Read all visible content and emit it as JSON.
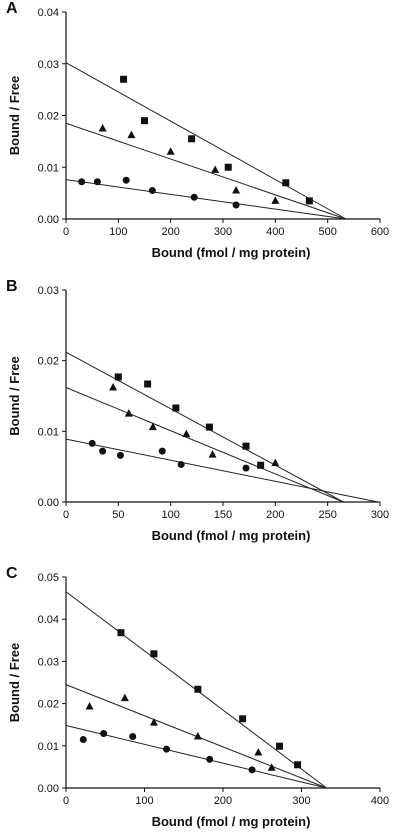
{
  "chart_data": [
    {
      "type": "scatter",
      "panel_label": "A",
      "xlabel": "Bound (fmol / mg protein)",
      "ylabel": "Bound / Free",
      "xlim": [
        0,
        600
      ],
      "ylim": [
        0,
        0.04
      ],
      "xticks": [
        "0",
        "100",
        "200",
        "300",
        "400",
        "500",
        "600"
      ],
      "yticks": [
        "0.00",
        "0.01",
        "0.02",
        "0.03",
        "0.04"
      ],
      "series": [
        {
          "marker": "square",
          "x": [
            110,
            150,
            240,
            310,
            420,
            465
          ],
          "y": [
            0.027,
            0.019,
            0.0155,
            0.01,
            0.007,
            0.0035
          ],
          "fit": [
            [
              0,
              0.0302
            ],
            [
              535,
              0
            ]
          ]
        },
        {
          "marker": "triangle",
          "x": [
            70,
            125,
            200,
            285,
            325,
            400
          ],
          "y": [
            0.0175,
            0.0162,
            0.013,
            0.0095,
            0.0055,
            0.0035
          ],
          "fit": [
            [
              0,
              0.0185
            ],
            [
              535,
              0
            ]
          ]
        },
        {
          "marker": "circle",
          "x": [
            30,
            60,
            115,
            165,
            245,
            325
          ],
          "y": [
            0.0072,
            0.0072,
            0.0075,
            0.0055,
            0.0042,
            0.0027
          ],
          "fit": [
            [
              0,
              0.0076
            ],
            [
              535,
              0
            ]
          ]
        }
      ]
    },
    {
      "type": "scatter",
      "panel_label": "B",
      "xlabel": "Bound (fmol / mg protein)",
      "ylabel": "Bound / Free",
      "xlim": [
        0,
        300
      ],
      "ylim": [
        0,
        0.03
      ],
      "xticks": [
        "0",
        "50",
        "100",
        "150",
        "200",
        "250",
        "300"
      ],
      "yticks": [
        "0.00",
        "0.01",
        "0.02",
        "0.03"
      ],
      "series": [
        {
          "marker": "square",
          "x": [
            50,
            78,
            105,
            137,
            172,
            186
          ],
          "y": [
            0.0177,
            0.0167,
            0.0133,
            0.0106,
            0.0079,
            0.0052
          ],
          "fit": [
            [
              0,
              0.0212
            ],
            [
              265,
              0
            ]
          ]
        },
        {
          "marker": "triangle",
          "x": [
            45,
            60,
            83,
            115,
            140,
            200
          ],
          "y": [
            0.0162,
            0.0125,
            0.0106,
            0.0096,
            0.0067,
            0.0055
          ],
          "fit": [
            [
              0,
              0.0162
            ],
            [
              265,
              0
            ]
          ]
        },
        {
          "marker": "circle",
          "x": [
            25,
            35,
            52,
            92,
            110,
            172
          ],
          "y": [
            0.0083,
            0.0072,
            0.0066,
            0.0072,
            0.0053,
            0.0048
          ],
          "fit": [
            [
              0,
              0.0089
            ],
            [
              298,
              0
            ]
          ]
        }
      ]
    },
    {
      "type": "scatter",
      "panel_label": "C",
      "xlabel": "Bound (fmol / mg protein)",
      "ylabel": "Bound / Free",
      "xlim": [
        0,
        400
      ],
      "ylim": [
        0,
        0.05
      ],
      "xticks": [
        "0",
        "100",
        "200",
        "300",
        "400"
      ],
      "yticks": [
        "0.00",
        "0.01",
        "0.02",
        "0.03",
        "0.04",
        "0.05"
      ],
      "series": [
        {
          "marker": "square",
          "x": [
            70,
            112,
            168,
            225,
            272,
            295
          ],
          "y": [
            0.0368,
            0.0318,
            0.0234,
            0.0164,
            0.0099,
            0.0055
          ],
          "fit": [
            [
              0,
              0.0465
            ],
            [
              332,
              0
            ]
          ]
        },
        {
          "marker": "triangle",
          "x": [
            30,
            75,
            112,
            168,
            245,
            262
          ],
          "y": [
            0.0193,
            0.0213,
            0.0155,
            0.0122,
            0.0084,
            0.0048
          ],
          "fit": [
            [
              0,
              0.0245
            ],
            [
              332,
              0
            ]
          ]
        },
        {
          "marker": "circle",
          "x": [
            22,
            48,
            85,
            128,
            183,
            237
          ],
          "y": [
            0.0115,
            0.0129,
            0.0122,
            0.0092,
            0.0068,
            0.0043
          ],
          "fit": [
            [
              0,
              0.0148
            ],
            [
              332,
              0
            ]
          ]
        }
      ]
    }
  ]
}
